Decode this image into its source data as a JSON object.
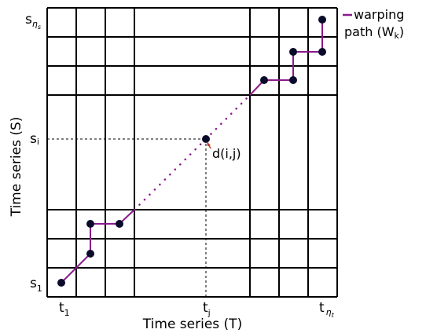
{
  "axes": {
    "x_title": "Time series (T)",
    "y_title": "Time series (S)"
  },
  "x_ticks": {
    "t1": {
      "base": "t",
      "sub": "1"
    },
    "tj": {
      "base": "t",
      "sub": "j"
    },
    "tn": {
      "base": "t",
      "sub": "η",
      "subsub": "t"
    }
  },
  "y_ticks": {
    "s1": {
      "base": "s",
      "sub": "1"
    },
    "si": {
      "base": "s",
      "sub": "i"
    },
    "sn": {
      "base": "s",
      "sub": "η",
      "subsub": "s"
    }
  },
  "cell_label": "d(i,j)",
  "legend": {
    "line1": "warping",
    "line2_prefix": "path (W",
    "line2_sub": "k",
    "line2_suffix": ")"
  },
  "colors": {
    "grid": "#000000",
    "path": "#8b1a8b",
    "dots": "#000000",
    "arrow": "#c0392b"
  }
}
